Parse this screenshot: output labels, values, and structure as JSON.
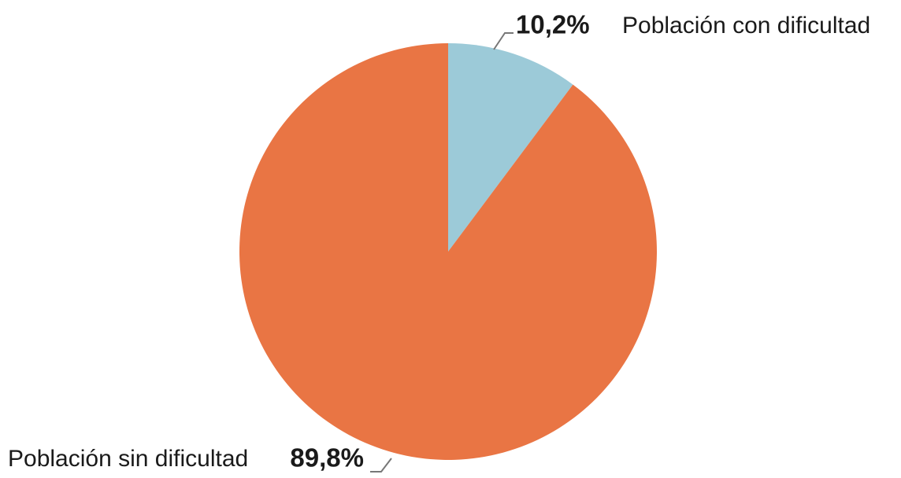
{
  "chart_data": {
    "type": "pie",
    "categories": [
      "Población con dificultad",
      "Población sin dificultad"
    ],
    "values": [
      10.2,
      89.8
    ],
    "value_labels": [
      "10,2%",
      "89,8%"
    ],
    "colors": [
      "#9ccad8",
      "#e97544"
    ]
  }
}
